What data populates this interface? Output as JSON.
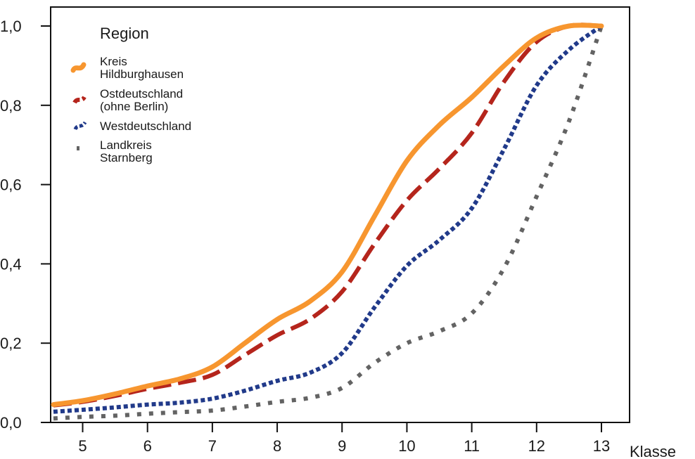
{
  "chart_data": {
    "type": "line",
    "xlabel": "Klasse",
    "ylabel": "",
    "xlim": [
      4.5,
      13.45
    ],
    "ylim": [
      0.0,
      1.05
    ],
    "xticks": [
      5,
      6,
      7,
      8,
      9,
      10,
      11,
      12,
      13
    ],
    "yticks": [
      0.0,
      0.2,
      0.4,
      0.6,
      0.8,
      1.0
    ],
    "ytick_labels": [
      "0,0",
      "0,2",
      "0,4",
      "0,6",
      "0,8",
      "1,0"
    ],
    "grid": false,
    "legend": {
      "title": "Region",
      "placement": "top-left",
      "entries": [
        {
          "lines": [
            "Kreis",
            "Hildburghausen"
          ]
        },
        {
          "lines": [
            "Ostdeutschland",
            "(ohne Berlin)"
          ]
        },
        {
          "lines": [
            "Westdeutschland"
          ]
        },
        {
          "lines": [
            "Landkreis",
            "Starnberg"
          ]
        }
      ]
    },
    "series": [
      {
        "name": "Kreis Hildburghausen",
        "color": "#f7962f",
        "style": "solid",
        "x": [
          4.55,
          5,
          5.5,
          6,
          6.5,
          7,
          7.5,
          8,
          8.5,
          9,
          9.5,
          10,
          10.5,
          11,
          11.5,
          12,
          12.5,
          13
        ],
        "y": [
          0.045,
          0.055,
          0.072,
          0.092,
          0.11,
          0.14,
          0.2,
          0.26,
          0.305,
          0.38,
          0.52,
          0.66,
          0.75,
          0.82,
          0.9,
          0.97,
          1.0,
          1.0
        ]
      },
      {
        "name": "Ostdeutschland (ohne Berlin)",
        "color": "#b5251c",
        "style": "dashed",
        "x": [
          4.55,
          5,
          5.5,
          6,
          6.5,
          7,
          7.5,
          8,
          8.5,
          9,
          9.5,
          10,
          10.5,
          11,
          11.5,
          12,
          12.5,
          13
        ],
        "y": [
          0.043,
          0.052,
          0.067,
          0.085,
          0.1,
          0.12,
          0.17,
          0.22,
          0.26,
          0.33,
          0.45,
          0.56,
          0.64,
          0.73,
          0.86,
          0.96,
          1.0,
          1.0
        ]
      },
      {
        "name": "Westdeutschland",
        "color": "#213a8a",
        "style": "dotted",
        "x": [
          4.55,
          5,
          5.5,
          6,
          6.5,
          7,
          7.5,
          8,
          8.5,
          9,
          9.5,
          10,
          10.5,
          11,
          11.5,
          12,
          12.5,
          13
        ],
        "y": [
          0.027,
          0.032,
          0.038,
          0.045,
          0.05,
          0.06,
          0.08,
          0.105,
          0.125,
          0.175,
          0.29,
          0.395,
          0.46,
          0.54,
          0.69,
          0.85,
          0.94,
          1.0
        ]
      },
      {
        "name": "Landkreis Starnberg",
        "color": "#636363",
        "style": "dotted",
        "x": [
          4.55,
          5,
          5.5,
          6,
          6.5,
          7,
          7.5,
          8,
          8.5,
          9,
          9.5,
          10,
          10.5,
          11,
          11.5,
          12,
          12.5,
          13
        ],
        "y": [
          0.01,
          0.014,
          0.017,
          0.022,
          0.026,
          0.03,
          0.04,
          0.052,
          0.062,
          0.087,
          0.15,
          0.2,
          0.23,
          0.275,
          0.39,
          0.57,
          0.76,
          1.0
        ]
      }
    ]
  }
}
